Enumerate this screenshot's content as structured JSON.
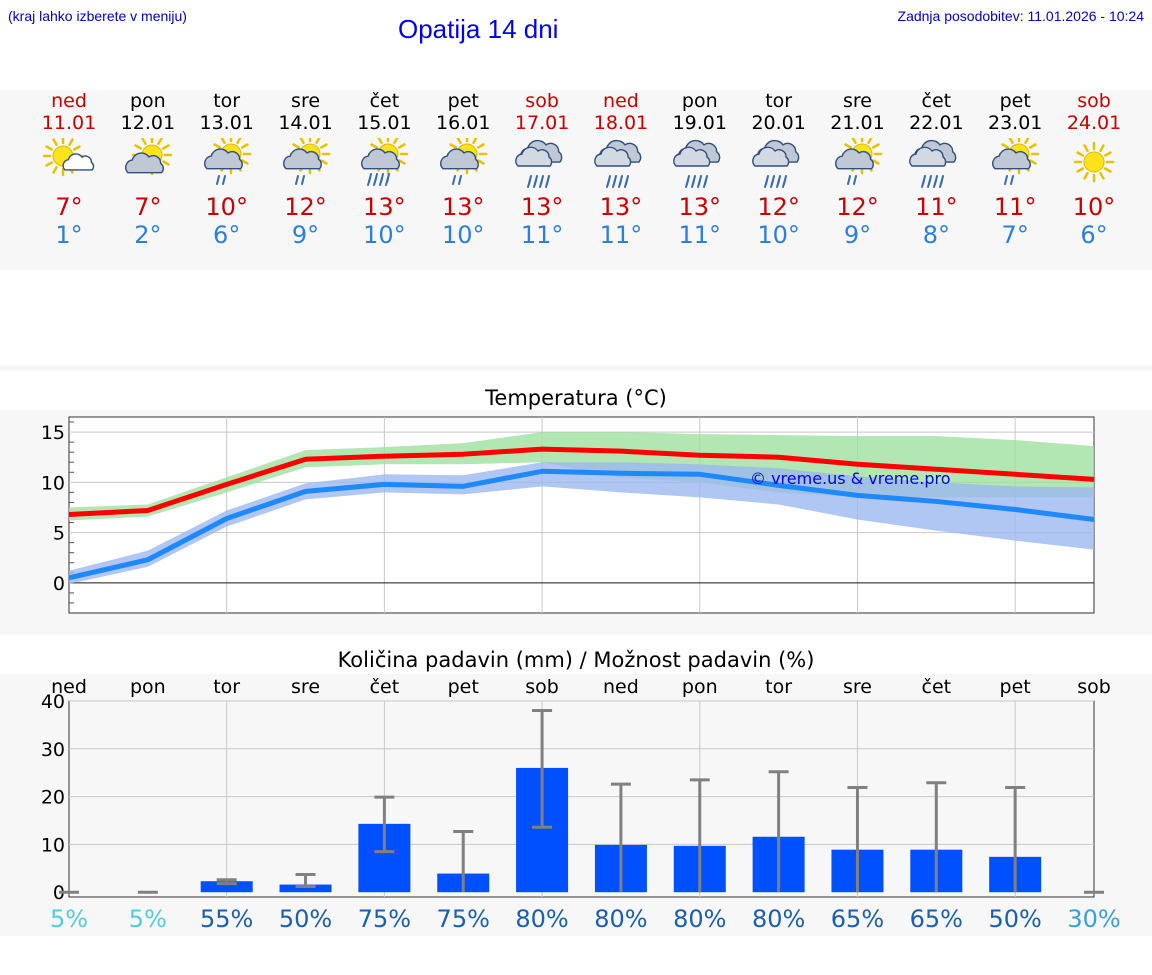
{
  "header": {
    "hint": "(kraj lahko izberete v meniju)",
    "title": "Opatija 14 dni",
    "updated": "Zadnja posodobitev: 11.01.2026 - 10:24"
  },
  "days": [
    {
      "name": "ned",
      "date": "11.01",
      "weekend": true,
      "icon": "sun-cloud-icon",
      "tmax": "7°",
      "tmin": "1°"
    },
    {
      "name": "pon",
      "date": "12.01",
      "weekend": false,
      "icon": "cloud-sun-icon",
      "tmax": "7°",
      "tmin": "2°"
    },
    {
      "name": "tor",
      "date": "13.01",
      "weekend": false,
      "icon": "sun-cloud-rain-icon",
      "tmax": "10°",
      "tmin": "6°"
    },
    {
      "name": "sre",
      "date": "14.01",
      "weekend": false,
      "icon": "sun-cloud-rain-icon",
      "tmax": "12°",
      "tmin": "9°"
    },
    {
      "name": "čet",
      "date": "15.01",
      "weekend": false,
      "icon": "sun-cloud-heavy-rain-icon",
      "tmax": "13°",
      "tmin": "10°"
    },
    {
      "name": "pet",
      "date": "16.01",
      "weekend": false,
      "icon": "sun-cloud-rain-icon",
      "tmax": "13°",
      "tmin": "10°"
    },
    {
      "name": "sob",
      "date": "17.01",
      "weekend": true,
      "icon": "cloud-rain-icon",
      "tmax": "13°",
      "tmin": "11°"
    },
    {
      "name": "ned",
      "date": "18.01",
      "weekend": true,
      "icon": "cloud-rain-icon",
      "tmax": "13°",
      "tmin": "11°"
    },
    {
      "name": "pon",
      "date": "19.01",
      "weekend": false,
      "icon": "cloud-rain-icon",
      "tmax": "13°",
      "tmin": "11°"
    },
    {
      "name": "tor",
      "date": "20.01",
      "weekend": false,
      "icon": "cloud-rain-icon",
      "tmax": "12°",
      "tmin": "10°"
    },
    {
      "name": "sre",
      "date": "21.01",
      "weekend": false,
      "icon": "sun-cloud-rain-icon",
      "tmax": "12°",
      "tmin": "9°"
    },
    {
      "name": "čet",
      "date": "22.01",
      "weekend": false,
      "icon": "cloud-rain-icon",
      "tmax": "11°",
      "tmin": "8°"
    },
    {
      "name": "pet",
      "date": "23.01",
      "weekend": false,
      "icon": "sun-cloud-rain-icon",
      "tmax": "11°",
      "tmin": "7°"
    },
    {
      "name": "sob",
      "date": "24.01",
      "weekend": true,
      "icon": "sun-icon",
      "tmax": "10°",
      "tmin": "6°"
    }
  ],
  "colors": {
    "weekend": "#cc0000",
    "tmax": "#cc0000",
    "tmin": "#2a7fe0",
    "max_line": "#ff0000",
    "min_line": "#1e88ff",
    "max_band": "#9fe09f",
    "min_band": "#9cb8f0",
    "bar": "#0050ff",
    "whisker": "#808080",
    "chance_low": "#55ccdd",
    "chance_high": "#1a5fb0"
  },
  "chart_data": [
    {
      "type": "line",
      "title": "Temperatura (°C)",
      "watermark": "© vreme.us & vreme.pro",
      "x": [
        "11.01",
        "12.01",
        "13.01",
        "14.01",
        "15.01",
        "16.01",
        "17.01",
        "18.01",
        "19.01",
        "20.01",
        "21.01",
        "22.01",
        "23.01",
        "24.01"
      ],
      "ylim": [
        -3,
        16.5
      ],
      "yticks": [
        0,
        5,
        10,
        15
      ],
      "series": [
        {
          "name": "max",
          "values": [
            6.8,
            7.2,
            9.8,
            12.3,
            12.6,
            12.8,
            13.3,
            13.1,
            12.7,
            12.5,
            11.8,
            11.3,
            10.8,
            10.3
          ],
          "band_low": [
            6.2,
            6.6,
            9.0,
            11.5,
            11.8,
            11.8,
            12.0,
            10.5,
            10.0,
            9.0,
            8.5,
            8.5,
            8.5,
            8.5
          ],
          "band_high": [
            7.5,
            7.8,
            10.5,
            13.2,
            13.5,
            13.9,
            15.0,
            15.0,
            14.8,
            14.7,
            14.6,
            14.6,
            14.2,
            13.6
          ]
        },
        {
          "name": "min",
          "values": [
            0.5,
            2.3,
            6.4,
            9.1,
            9.8,
            9.6,
            11.1,
            10.9,
            10.8,
            9.7,
            8.7,
            8.1,
            7.3,
            6.3
          ],
          "band_low": [
            -0.1,
            1.6,
            5.6,
            8.3,
            9.0,
            8.8,
            9.6,
            9.0,
            8.5,
            7.8,
            6.3,
            5.2,
            4.2,
            3.3
          ],
          "band_high": [
            1.2,
            3.2,
            7.2,
            9.9,
            10.8,
            10.7,
            12.0,
            12.0,
            11.8,
            11.4,
            10.6,
            10.0,
            9.6,
            9.5
          ]
        }
      ]
    },
    {
      "type": "bar",
      "title": "Količina padavin (mm) / Možnost padavin (%)",
      "categories": [
        "ned",
        "pon",
        "tor",
        "sre",
        "čet",
        "pet",
        "sob",
        "ned",
        "pon",
        "tor",
        "sre",
        "čet",
        "pet",
        "sob"
      ],
      "values": [
        0,
        0,
        2.3,
        1.6,
        14.3,
        3.9,
        26,
        9.9,
        9.7,
        11.6,
        8.9,
        8.9,
        7.4,
        0
      ],
      "err_low": [
        0,
        0,
        1.8,
        1.2,
        8.5,
        0,
        13.6,
        0,
        0,
        0,
        0,
        0,
        0,
        0
      ],
      "err_high": [
        0,
        0,
        2.6,
        3.7,
        19.9,
        12.7,
        38,
        22.6,
        23.5,
        25.2,
        21.9,
        22.9,
        21.9,
        0
      ],
      "chance": [
        "5%",
        "5%",
        "55%",
        "50%",
        "75%",
        "75%",
        "80%",
        "80%",
        "80%",
        "80%",
        "65%",
        "65%",
        "50%",
        "30%"
      ],
      "chance_values": [
        5,
        5,
        55,
        50,
        75,
        75,
        80,
        80,
        80,
        80,
        65,
        65,
        50,
        30
      ],
      "ylim": [
        -1,
        40
      ],
      "yticks": [
        0,
        10,
        20,
        30,
        40
      ],
      "ylabel": "mm"
    }
  ]
}
